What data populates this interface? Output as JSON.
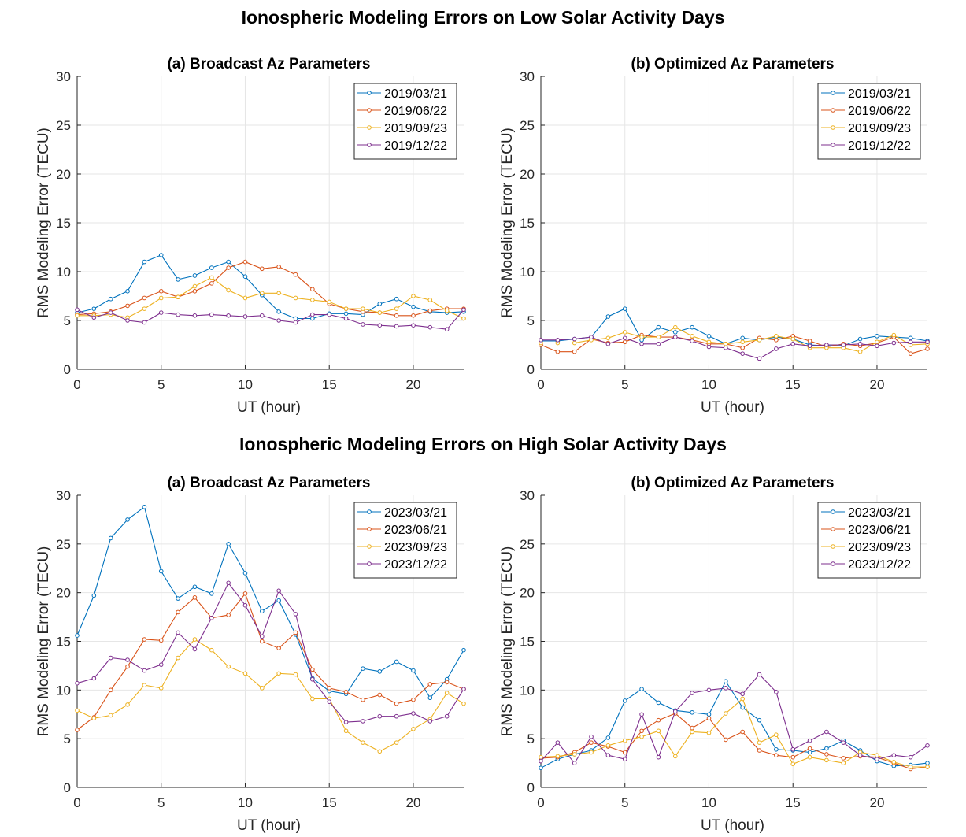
{
  "figure": {
    "title_low": "Ionospheric Modeling Errors on Low Solar Activity Days",
    "title_high": "Ionospheric Modeling Errors on High Solar Activity Days"
  },
  "colors": [
    "#0072BD",
    "#D95319",
    "#EDB120",
    "#7E2F8E"
  ],
  "chart_data": [
    {
      "type": "line",
      "title": "(a) Broadcast Az Parameters",
      "xlabel": "UT (hour)",
      "ylabel": "RMS Modeling Error (TECU)",
      "xlim": [
        0,
        23
      ],
      "ylim": [
        0,
        30
      ],
      "xticks": [
        0,
        5,
        10,
        15,
        20
      ],
      "yticks": [
        0,
        5,
        10,
        15,
        20,
        25,
        30
      ],
      "grid": true,
      "legend_position": "top-right",
      "x": [
        0,
        1,
        2,
        3,
        4,
        5,
        6,
        7,
        8,
        9,
        10,
        11,
        12,
        13,
        14,
        15,
        16,
        17,
        18,
        19,
        20,
        21,
        22,
        23
      ],
      "series": [
        {
          "name": "2019/03/21",
          "values": [
            5.8,
            6.2,
            7.2,
            8.0,
            11.0,
            11.7,
            9.2,
            9.6,
            10.4,
            11.0,
            9.5,
            7.6,
            5.9,
            5.2,
            5.2,
            5.7,
            5.7,
            5.6,
            6.7,
            7.2,
            6.4,
            5.9,
            5.8,
            5.9
          ]
        },
        {
          "name": "2019/06/22",
          "values": [
            5.6,
            5.7,
            5.9,
            6.5,
            7.3,
            8.0,
            7.4,
            8.0,
            8.8,
            10.4,
            11.0,
            10.3,
            10.5,
            9.7,
            8.2,
            6.7,
            6.2,
            5.9,
            5.8,
            5.5,
            5.5,
            6.0,
            6.2,
            6.2
          ]
        },
        {
          "name": "2019/09/23",
          "values": [
            5.5,
            5.5,
            5.6,
            5.3,
            6.2,
            7.3,
            7.4,
            8.5,
            9.4,
            8.1,
            7.3,
            7.8,
            7.8,
            7.3,
            7.1,
            6.9,
            6.2,
            6.2,
            5.8,
            6.2,
            7.5,
            7.1,
            6.0,
            5.2
          ]
        },
        {
          "name": "2019/12/22",
          "values": [
            6.1,
            5.3,
            5.8,
            5.0,
            4.8,
            5.8,
            5.6,
            5.5,
            5.6,
            5.5,
            5.4,
            5.5,
            5.0,
            4.8,
            5.6,
            5.6,
            5.2,
            4.6,
            4.5,
            4.4,
            4.5,
            4.3,
            4.1,
            6.1
          ]
        }
      ]
    },
    {
      "type": "line",
      "title": "(b) Optimized Az Parameters",
      "xlabel": "UT (hour)",
      "ylabel": "RMS Modeling Error (TECU)",
      "xlim": [
        0,
        23
      ],
      "ylim": [
        0,
        30
      ],
      "xticks": [
        0,
        5,
        10,
        15,
        20
      ],
      "yticks": [
        0,
        5,
        10,
        15,
        20,
        25,
        30
      ],
      "grid": true,
      "legend_position": "top-right",
      "x": [
        0,
        1,
        2,
        3,
        4,
        5,
        6,
        7,
        8,
        9,
        10,
        11,
        12,
        13,
        14,
        15,
        16,
        17,
        18,
        19,
        20,
        21,
        22,
        23
      ],
      "series": [
        {
          "name": "2019/03/21",
          "values": [
            2.9,
            2.9,
            3.1,
            3.3,
            5.4,
            6.2,
            3.0,
            4.3,
            3.8,
            4.3,
            3.4,
            2.6,
            3.2,
            3.0,
            3.3,
            3.1,
            2.5,
            2.4,
            2.4,
            3.1,
            3.4,
            3.3,
            3.2,
            2.9
          ]
        },
        {
          "name": "2019/06/22",
          "values": [
            2.5,
            1.8,
            1.8,
            3.1,
            2.7,
            2.8,
            3.5,
            3.3,
            3.3,
            3.0,
            2.6,
            2.6,
            2.2,
            3.2,
            3.0,
            3.4,
            2.9,
            2.3,
            2.6,
            2.4,
            2.7,
            3.3,
            1.6,
            2.1
          ]
        },
        {
          "name": "2019/09/23",
          "values": [
            2.7,
            2.7,
            2.7,
            3.0,
            3.2,
            3.8,
            3.3,
            3.3,
            4.3,
            3.4,
            2.8,
            2.6,
            2.8,
            3.0,
            3.4,
            3.1,
            2.2,
            2.2,
            2.2,
            1.8,
            2.8,
            3.5,
            2.5,
            2.6
          ]
        },
        {
          "name": "2019/12/22",
          "values": [
            3.0,
            3.0,
            3.1,
            3.3,
            2.6,
            3.2,
            2.6,
            2.6,
            3.3,
            2.9,
            2.3,
            2.2,
            1.6,
            1.1,
            2.1,
            2.6,
            2.4,
            2.5,
            2.5,
            2.6,
            2.4,
            2.7,
            2.8,
            2.8
          ]
        }
      ]
    },
    {
      "type": "line",
      "title": "(a) Broadcast Az Parameters",
      "xlabel": "UT (hour)",
      "ylabel": "RMS Modeling Error (TECU)",
      "xlim": [
        0,
        23
      ],
      "ylim": [
        0,
        30
      ],
      "xticks": [
        0,
        5,
        10,
        15,
        20
      ],
      "yticks": [
        0,
        5,
        10,
        15,
        20,
        25,
        30
      ],
      "grid": true,
      "legend_position": "top-right",
      "x": [
        0,
        1,
        2,
        3,
        4,
        5,
        6,
        7,
        8,
        9,
        10,
        11,
        12,
        13,
        14,
        15,
        16,
        17,
        18,
        19,
        20,
        21,
        22,
        23
      ],
      "series": [
        {
          "name": "2023/03/21",
          "values": [
            15.6,
            19.7,
            25.6,
            27.5,
            28.8,
            22.2,
            19.4,
            20.6,
            19.9,
            25.0,
            22.0,
            18.1,
            19.2,
            15.7,
            11.2,
            9.9,
            9.6,
            12.2,
            11.9,
            12.9,
            12.0,
            9.2,
            11.1,
            14.1
          ]
        },
        {
          "name": "2023/06/21",
          "values": [
            5.9,
            7.2,
            10.0,
            12.4,
            15.2,
            15.1,
            18.0,
            19.5,
            17.4,
            17.7,
            19.9,
            15.0,
            14.3,
            15.9,
            12.1,
            10.2,
            9.8,
            9.0,
            9.5,
            8.6,
            9.0,
            10.6,
            10.8,
            10.1
          ]
        },
        {
          "name": "2023/09/23",
          "values": [
            7.9,
            7.1,
            7.4,
            8.5,
            10.5,
            10.2,
            13.3,
            15.2,
            14.1,
            12.4,
            11.7,
            10.2,
            11.7,
            11.6,
            9.1,
            9.1,
            5.8,
            4.6,
            3.7,
            4.6,
            6.0,
            7.0,
            9.7,
            8.6
          ]
        },
        {
          "name": "2023/12/22",
          "values": [
            10.7,
            11.2,
            13.3,
            13.1,
            12.0,
            12.6,
            15.9,
            14.2,
            17.4,
            21.0,
            18.7,
            15.5,
            20.2,
            17.8,
            11.1,
            8.8,
            6.7,
            6.8,
            7.3,
            7.3,
            7.6,
            6.8,
            7.3,
            10.1
          ]
        }
      ]
    },
    {
      "type": "line",
      "title": "(b) Optimized Az Parameters",
      "xlabel": "UT (hour)",
      "ylabel": "RMS Modeling Error (TECU)",
      "xlim": [
        0,
        23
      ],
      "ylim": [
        0,
        30
      ],
      "xticks": [
        0,
        5,
        10,
        15,
        20
      ],
      "yticks": [
        0,
        5,
        10,
        15,
        20,
        25,
        30
      ],
      "grid": true,
      "legend_position": "top-right",
      "x": [
        0,
        1,
        2,
        3,
        4,
        5,
        6,
        7,
        8,
        9,
        10,
        11,
        12,
        13,
        14,
        15,
        16,
        17,
        18,
        19,
        20,
        21,
        22,
        23
      ],
      "series": [
        {
          "name": "2023/03/21",
          "values": [
            2.0,
            2.9,
            3.4,
            3.8,
            5.1,
            8.9,
            10.1,
            8.7,
            7.9,
            7.7,
            7.5,
            10.9,
            8.2,
            6.9,
            3.9,
            3.8,
            3.6,
            4.0,
            4.8,
            3.8,
            2.7,
            2.2,
            2.3,
            2.5
          ]
        },
        {
          "name": "2023/06/21",
          "values": [
            3.0,
            3.1,
            3.6,
            4.6,
            4.2,
            3.6,
            5.8,
            6.9,
            7.6,
            6.1,
            7.1,
            4.9,
            5.7,
            3.8,
            3.3,
            3.1,
            4.0,
            3.4,
            3.0,
            3.2,
            3.1,
            2.5,
            1.9,
            2.1
          ]
        },
        {
          "name": "2023/09/23",
          "values": [
            3.1,
            3.2,
            3.4,
            3.6,
            4.3,
            4.8,
            5.2,
            5.8,
            3.2,
            5.7,
            5.6,
            7.6,
            9.1,
            4.6,
            5.4,
            2.4,
            3.1,
            2.8,
            2.5,
            3.6,
            3.3,
            2.6,
            2.1,
            2.1
          ]
        },
        {
          "name": "2023/12/22",
          "values": [
            2.7,
            4.6,
            2.5,
            5.2,
            3.3,
            2.9,
            7.5,
            3.1,
            7.8,
            9.7,
            10.0,
            10.2,
            9.6,
            11.6,
            9.8,
            3.9,
            4.8,
            5.7,
            4.6,
            3.3,
            2.9,
            3.3,
            3.1,
            4.3
          ]
        }
      ]
    }
  ]
}
